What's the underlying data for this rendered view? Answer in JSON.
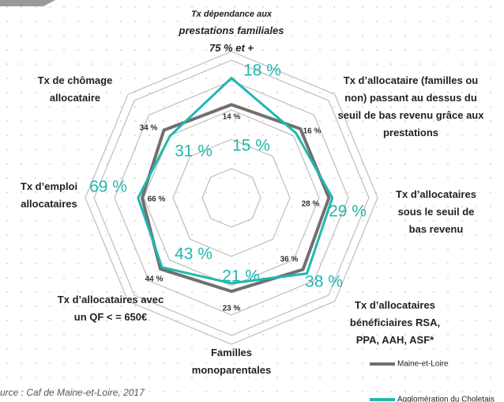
{
  "chart_data": {
    "type": "radar",
    "axes": [
      {
        "label": [
          "Tx dépendance aux",
          "prestations familiales",
          "75 % et +"
        ],
        "rlim": [
          0,
          22
        ]
      },
      {
        "label": [
          "Tx d’allocataire (familles ou",
          "non) passant au dessus du",
          "seuil de bas revenu grâce aux",
          "prestations"
        ],
        "rlim": [
          0,
          24
        ]
      },
      {
        "label": [
          "Tx d’allocataires",
          "sous le seuil de",
          "bas revenu"
        ],
        "rlim": [
          0,
          42
        ]
      },
      {
        "label": [
          "Tx d’allocataires",
          "bénéficiaires RSA,",
          "PPA, AAH, ASF*"
        ],
        "rlim": [
          0,
          52
        ]
      },
      {
        "label": [
          "Familles",
          "monoparentales"
        ],
        "rlim": [
          0,
          36
        ]
      },
      {
        "label": [
          "Tx d’allocataires avec",
          "un QF < = 650€"
        ],
        "rlim": [
          0,
          64
        ]
      },
      {
        "label": [
          "Tx d’emploi",
          "allocataires"
        ],
        "rlim": [
          0,
          108
        ]
      },
      {
        "label": [
          "Tx de chômage",
          "allocataire"
        ],
        "rlim": [
          0,
          52
        ]
      }
    ],
    "series": [
      {
        "name": "Maine-et-Loire",
        "color": "#707070",
        "values": [
          14,
          16,
          28,
          36,
          23,
          44,
          66,
          34
        ],
        "value_labels": [
          "14 %",
          "16 %",
          "28 %",
          "36 %",
          "23 %",
          "44 %",
          "66 %",
          "34 %"
        ]
      },
      {
        "name": "Agglomération du Choletais",
        "color": "#1fb8b0",
        "values": [
          18,
          15,
          29,
          38,
          21,
          43,
          69,
          31
        ],
        "value_labels": [
          "18 %",
          "15 %",
          "29 %",
          "38 %",
          "21 %",
          "43 %",
          "69 %",
          "31 %"
        ]
      }
    ],
    "source": "urce : Caf de Maine-et-Loire, 2017"
  }
}
